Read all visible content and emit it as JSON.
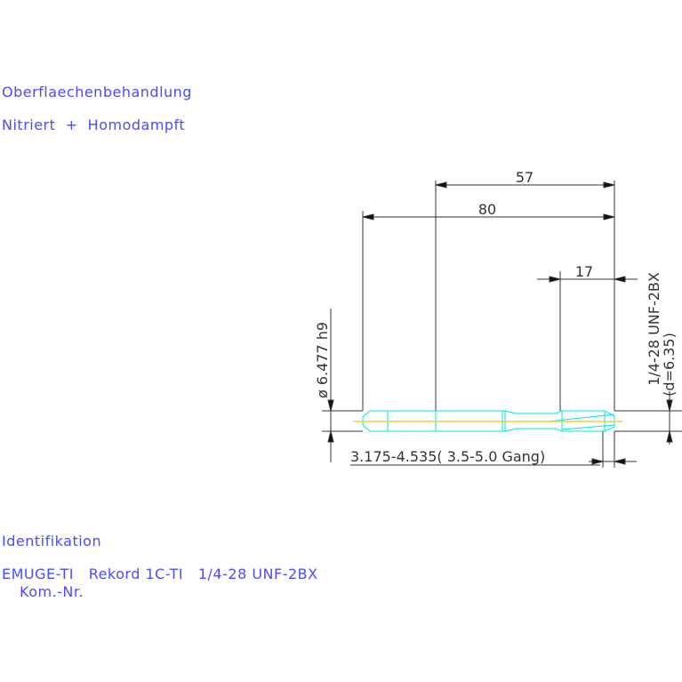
{
  "notes": {
    "surface_label": "Oberflaechenbehandlung",
    "surface_value": "Nitriert  +  Homodampft",
    "ident_label": "Identifikation",
    "ident_value": "EMUGE-TI   Rekord 1C-TI   1/4-28 UNF-2BX",
    "kom_nr": "Kom.-Nr."
  },
  "dimensions": {
    "length_57": "57",
    "length_80": "80",
    "length_17": "17",
    "shank_diameter": "ø 6.477 h9",
    "thread_spec": "1/4-28 UNF-2BX",
    "thread_diameter": "(d=6.35)",
    "core_range": "3.175-4.535( 3.5-5.0  Gang)"
  },
  "colors": {
    "text": "#4b4bff",
    "outline": "#00e5e5",
    "centerline": "#f0d040",
    "dim": "#333333"
  }
}
